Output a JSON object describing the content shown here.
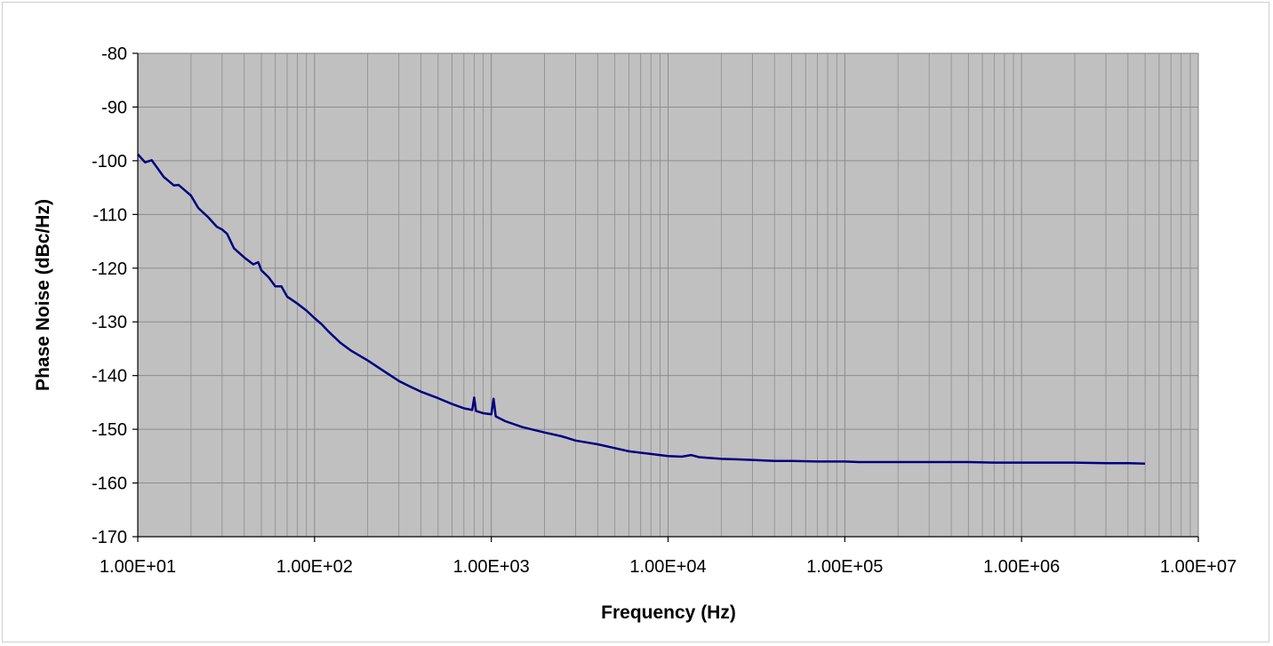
{
  "chart_data": {
    "type": "line",
    "title": "",
    "xlabel": "Frequency (Hz)",
    "ylabel": "Phase Noise (dBc/Hz)",
    "x_scale": "log",
    "xlim": [
      10,
      10000000
    ],
    "ylim": [
      -170,
      -80
    ],
    "grid": true,
    "legend": "none",
    "x_ticks": [
      10,
      100,
      1000,
      10000,
      100000,
      1000000,
      10000000
    ],
    "x_tick_labels": [
      "1.00E+01",
      "1.00E+02",
      "1.00E+03",
      "1.00E+04",
      "1.00E+05",
      "1.00E+06",
      "1.00E+07"
    ],
    "y_ticks": [
      -80,
      -90,
      -100,
      -110,
      -120,
      -130,
      -140,
      -150,
      -160,
      -170
    ],
    "y_tick_labels": [
      "-80",
      "-90",
      "-100",
      "-110",
      "-120",
      "-130",
      "-140",
      "-150",
      "-160",
      "-170"
    ],
    "colors": {
      "plot_background": "#c0c0c0",
      "grid": "#8c8c8c",
      "line": "#000080"
    },
    "series": [
      {
        "x": [
          10,
          11,
          12,
          13,
          14,
          15,
          16,
          17,
          18,
          20,
          22,
          25,
          28,
          30,
          32,
          35,
          40,
          45,
          48,
          50,
          55,
          60,
          65,
          70,
          80,
          90,
          100,
          110,
          120,
          140,
          160,
          200,
          250,
          300,
          350,
          400,
          500,
          600,
          700,
          780,
          800,
          820,
          900,
          1000,
          1030,
          1060,
          1200,
          1500,
          2000,
          2500,
          3000,
          4000,
          5000,
          6000,
          8000,
          10000,
          12000,
          13500,
          15000,
          20000,
          25000,
          30000,
          40000,
          50000,
          70000,
          100000,
          120000,
          150000,
          200000,
          300000,
          500000,
          700000,
          1000000,
          2000000,
          3000000,
          4000000,
          5000000
        ],
        "y": [
          -98.8,
          -100.3,
          -99.9,
          -101.5,
          -103.0,
          -103.8,
          -104.6,
          -104.5,
          -105.2,
          -106.5,
          -108.8,
          -110.5,
          -112.3,
          -112.8,
          -113.6,
          -116.3,
          -118.0,
          -119.3,
          -118.9,
          -120.4,
          -121.7,
          -123.4,
          -123.4,
          -125.3,
          -126.6,
          -127.9,
          -129.3,
          -130.5,
          -131.8,
          -133.9,
          -135.3,
          -137.2,
          -139.3,
          -141.0,
          -142.1,
          -143.0,
          -144.2,
          -145.3,
          -146.1,
          -146.4,
          -144.1,
          -146.6,
          -147.0,
          -147.2,
          -144.3,
          -147.6,
          -148.5,
          -149.6,
          -150.6,
          -151.3,
          -152.1,
          -152.8,
          -153.5,
          -154.1,
          -154.6,
          -155.0,
          -155.1,
          -154.8,
          -155.2,
          -155.5,
          -155.6,
          -155.7,
          -155.9,
          -155.9,
          -156.0,
          -156.0,
          -156.1,
          -156.1,
          -156.1,
          -156.1,
          -156.1,
          -156.2,
          -156.2,
          -156.2,
          -156.3,
          -156.3,
          -156.4
        ]
      }
    ]
  }
}
